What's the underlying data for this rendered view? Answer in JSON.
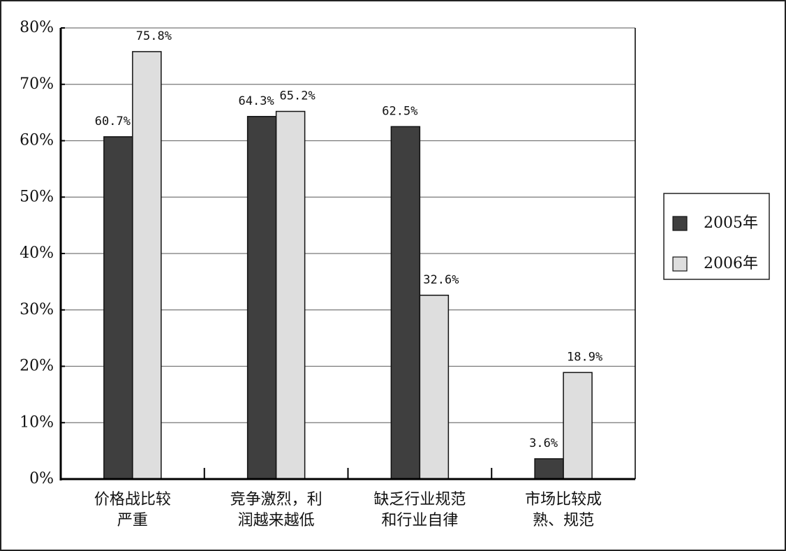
{
  "chart_data": {
    "type": "bar",
    "categories": [
      "价格战比较\n严重",
      "竞争激烈，利\n润越来越低",
      "缺乏行业规范\n和行业自律",
      "市场比较成\n熟、规范"
    ],
    "series": [
      {
        "name": "2005年",
        "color": "#3f3f3f",
        "values": [
          60.7,
          64.3,
          62.5,
          3.6
        ],
        "value_labels": [
          "60.7%",
          "64.3%",
          "62.5%",
          "3.6%"
        ]
      },
      {
        "name": "2006年",
        "color": "#dedede",
        "values": [
          75.8,
          65.2,
          32.6,
          18.9
        ],
        "value_labels": [
          "75.8%",
          "65.2%",
          "32.6%",
          "18.9%"
        ]
      }
    ],
    "ylim": [
      0,
      80
    ],
    "yticks": [
      {
        "value": 0,
        "label": "0%"
      },
      {
        "value": 10,
        "label": "10%"
      },
      {
        "value": 20,
        "label": "20%"
      },
      {
        "value": 30,
        "label": "30%"
      },
      {
        "value": 40,
        "label": "40%"
      },
      {
        "value": 50,
        "label": "50%"
      },
      {
        "value": 60,
        "label": "60%"
      },
      {
        "value": 70,
        "label": "70%"
      },
      {
        "value": 80,
        "label": "80%"
      }
    ],
    "grid": true
  }
}
